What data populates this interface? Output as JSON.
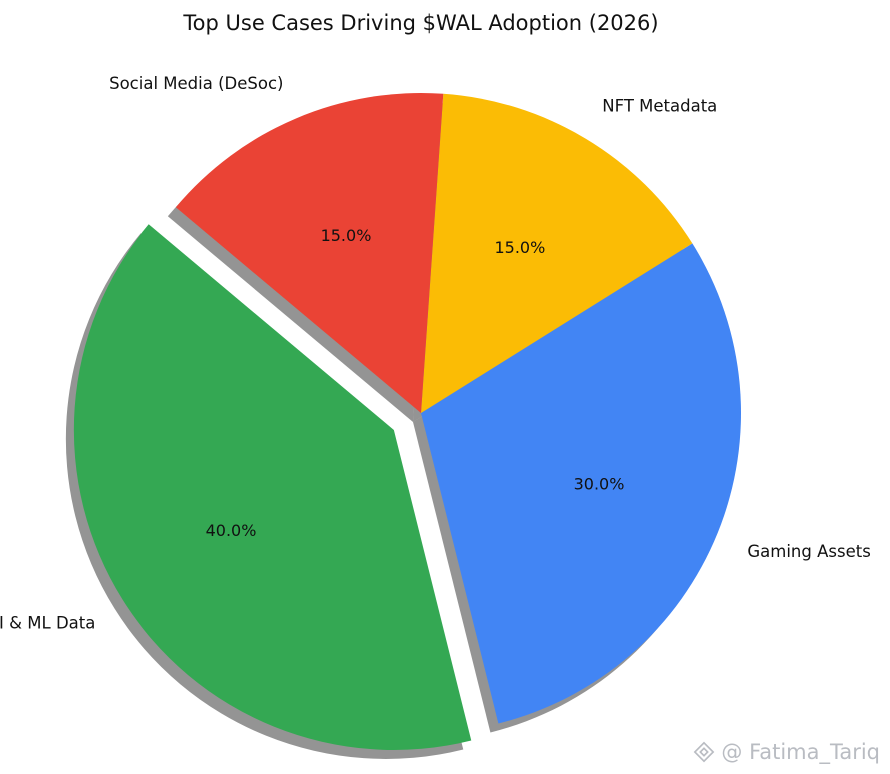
{
  "chart_data": {
    "type": "pie",
    "title": "Top Use Cases Driving $WAL Adoption (2026)",
    "categories": [
      "AI & ML Data",
      "Gaming Assets",
      "NFT Metadata",
      "Social Media (DeSoc)"
    ],
    "values": [
      40,
      30,
      15,
      15
    ],
    "percent_labels": [
      "40.0%",
      "30.0%",
      "15.0%",
      "15.0%"
    ],
    "colors": [
      "#34A853",
      "#4285F4",
      "#FBBC05",
      "#EA4335"
    ],
    "explode": [
      0.1,
      0,
      0,
      0
    ],
    "start_angle": 140,
    "shadow": true,
    "legend": "none"
  },
  "watermark": {
    "text": "@ Fatima_Tariq",
    "icon": "binance-diamond-icon"
  }
}
